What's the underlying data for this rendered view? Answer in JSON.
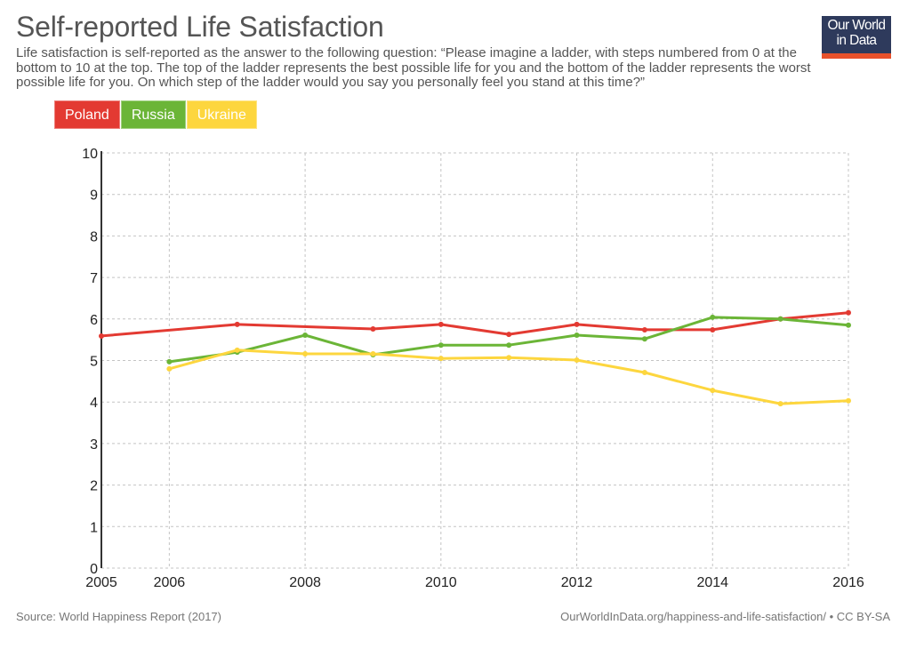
{
  "header": {
    "title": "Self-reported Life Satisfaction",
    "subtitle": "Life satisfaction is self-reported as the answer to the following question: “Please imagine a ladder, with steps numbered from 0 at the bottom to 10 at the top. The top of the ladder represents the best possible life for you and the bottom of the ladder represents the worst possible life for you. On which step of the ladder would you say you personally feel you stand at this time?”",
    "logo_line1": "Our World",
    "logo_line2": "in Data"
  },
  "footer": {
    "source": "Source: World Happiness Report (2017)",
    "link": "OurWorldInData.org/happiness-and-life-satisfaction/ • CC BY-SA"
  },
  "chart_data": {
    "type": "line",
    "title": "Self-reported Life Satisfaction",
    "xlabel": "",
    "ylabel": "",
    "xlim": [
      2005,
      2016
    ],
    "ylim": [
      0,
      10
    ],
    "grid": true,
    "legend_position": "top-left",
    "x_ticks": [
      2005,
      2006,
      2008,
      2010,
      2012,
      2014,
      2016
    ],
    "y_ticks": [
      0,
      1,
      2,
      3,
      4,
      5,
      6,
      7,
      8,
      9,
      10
    ],
    "series": [
      {
        "name": "Poland",
        "color": "#e33a32",
        "x": [
          2005,
          2007,
          2009,
          2010,
          2011,
          2012,
          2013,
          2014,
          2015,
          2016
        ],
        "values": [
          5.59,
          5.87,
          5.76,
          5.87,
          5.63,
          5.87,
          5.74,
          5.74,
          6.0,
          6.15
        ]
      },
      {
        "name": "Russia",
        "color": "#6bb537",
        "x": [
          2006,
          2007,
          2008,
          2009,
          2010,
          2011,
          2012,
          2013,
          2014,
          2015,
          2016
        ],
        "values": [
          4.97,
          5.2,
          5.61,
          5.14,
          5.37,
          5.37,
          5.61,
          5.52,
          6.04,
          6.0,
          5.85
        ]
      },
      {
        "name": "Ukraine",
        "color": "#fdd63e",
        "x": [
          2006,
          2007,
          2008,
          2009,
          2010,
          2011,
          2012,
          2013,
          2014,
          2015,
          2016
        ],
        "values": [
          4.8,
          5.25,
          5.16,
          5.16,
          5.05,
          5.07,
          5.01,
          4.71,
          4.28,
          3.96,
          4.03
        ]
      }
    ]
  }
}
